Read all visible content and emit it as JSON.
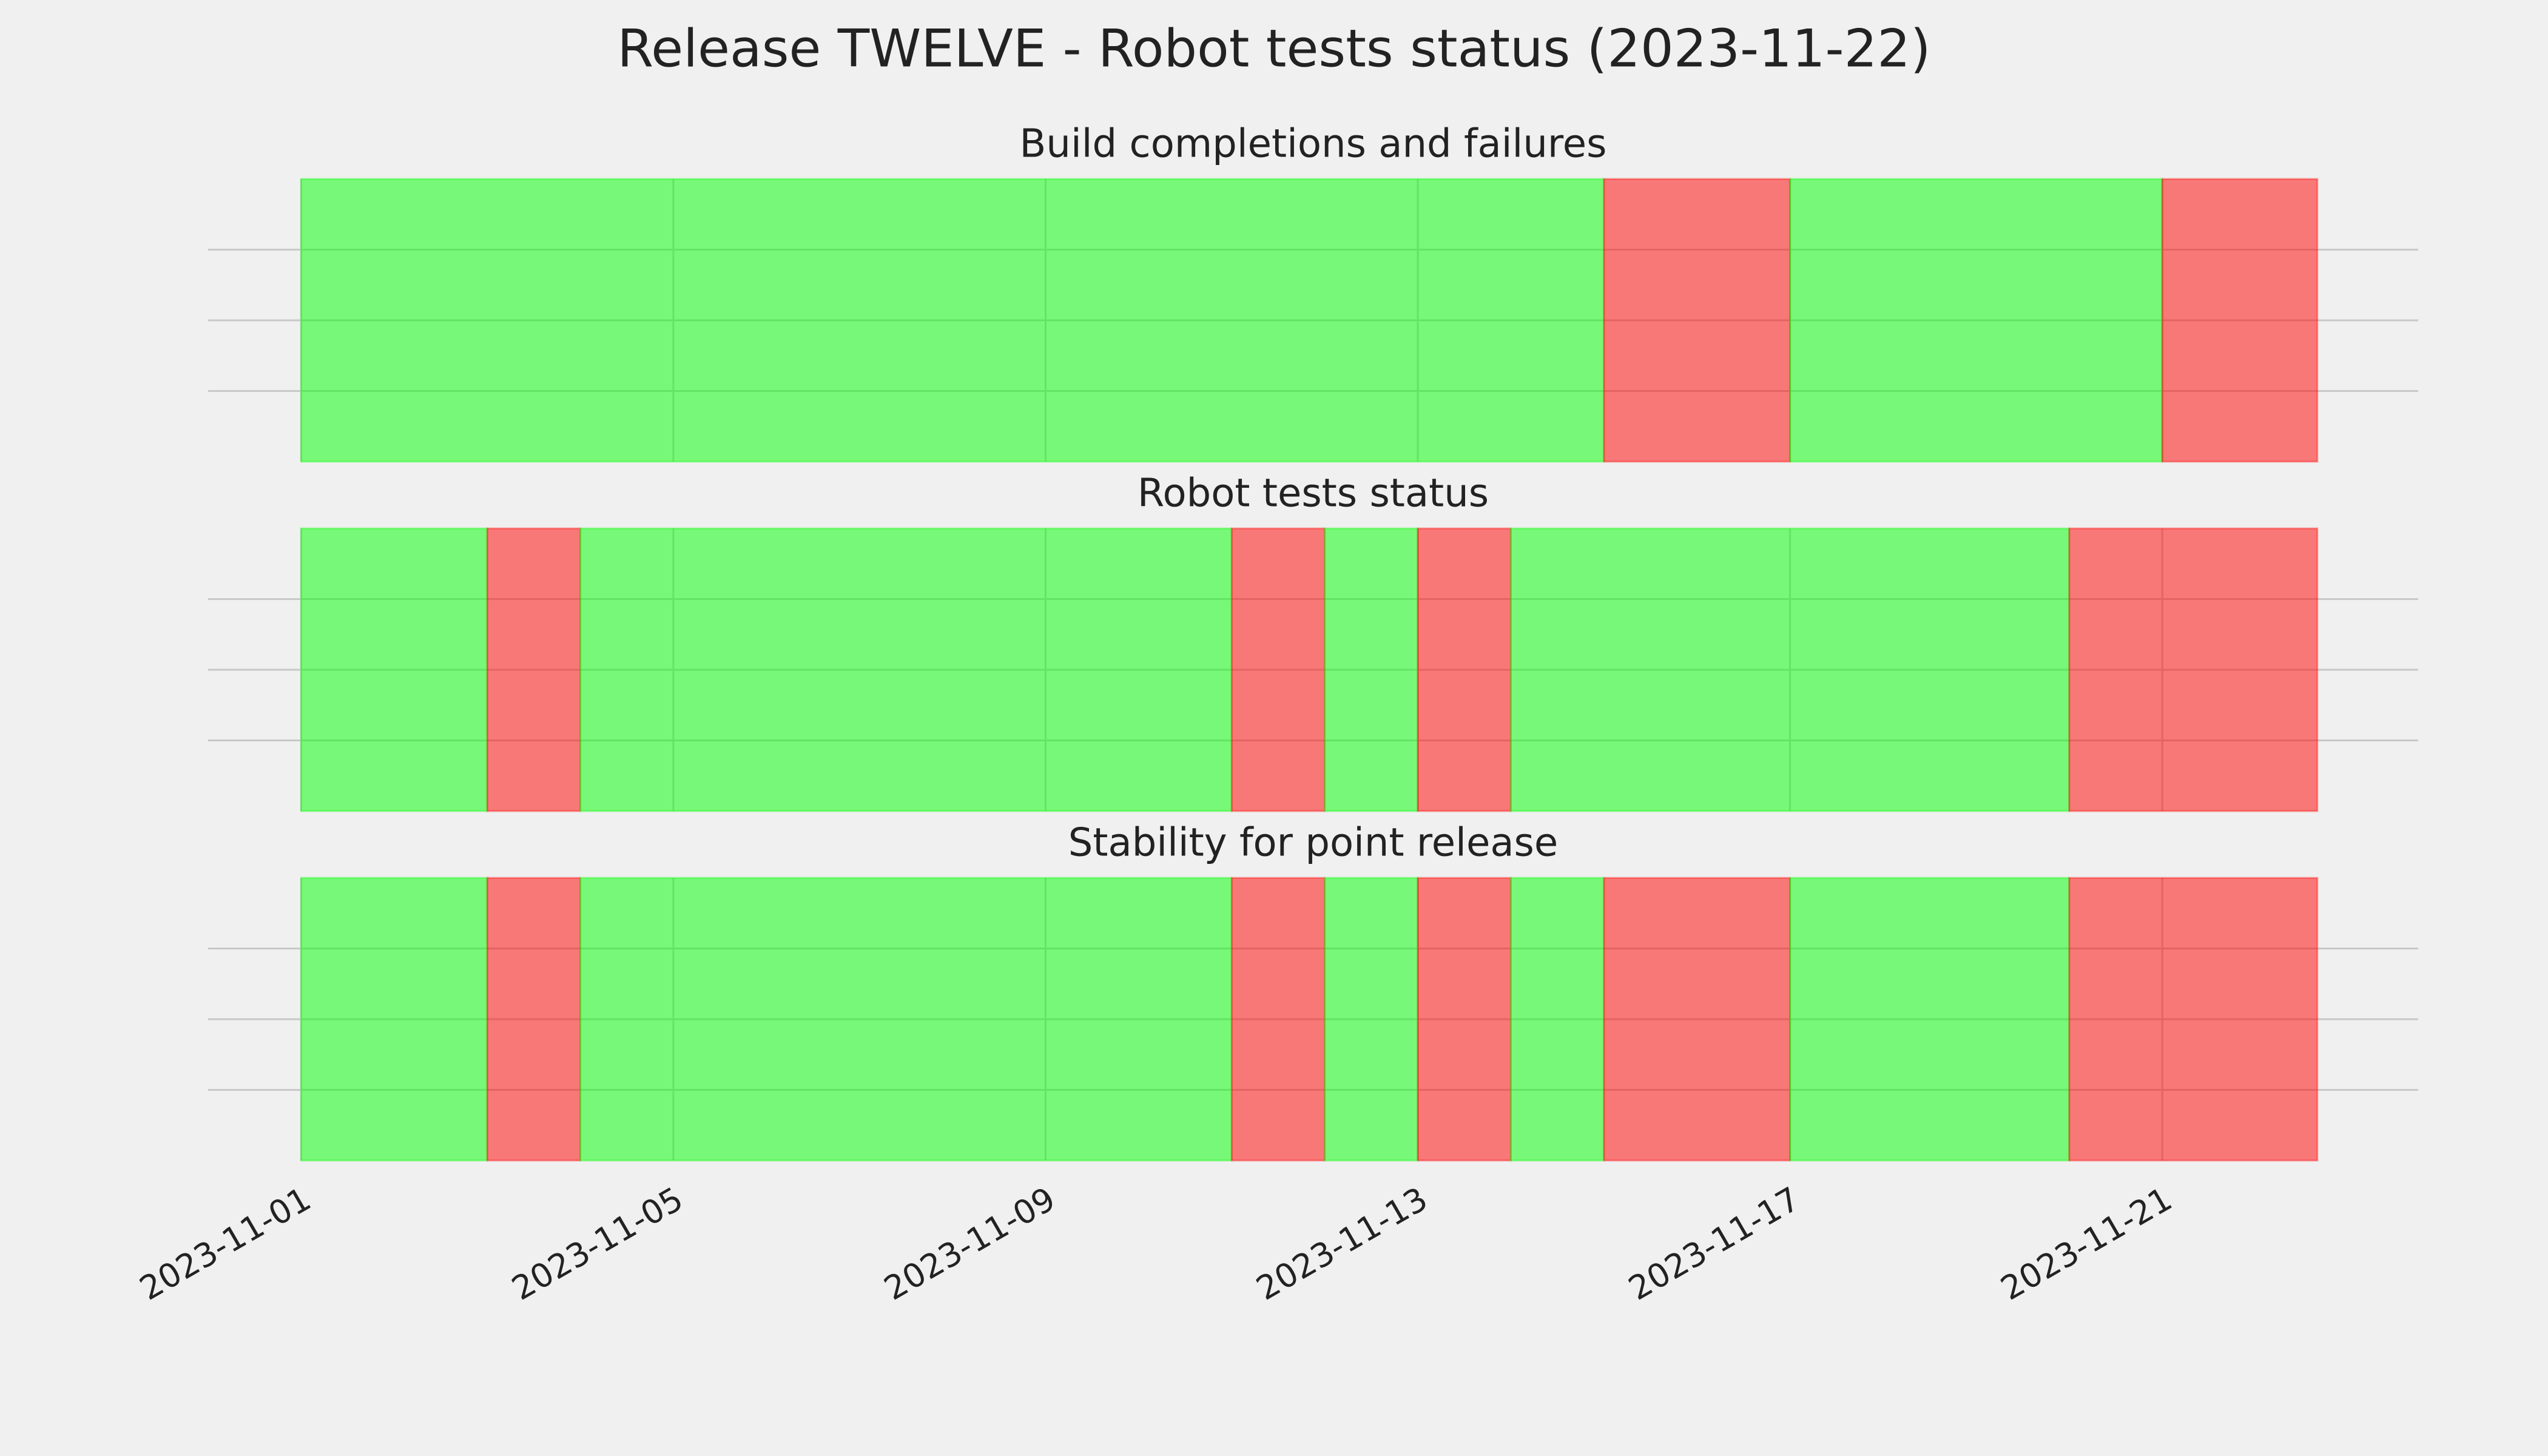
{
  "title": "Release TWELVE - Robot tests status (2023-11-22)",
  "chart_data": [
    {
      "type": "span",
      "title": "Build completions and failures",
      "xlim": [
        "2023-10-31",
        "2023-11-23T18:00"
      ],
      "xticks": [
        "2023-11-01",
        "2023-11-05",
        "2023-11-09",
        "2023-11-13",
        "2023-11-17",
        "2023-11-21"
      ],
      "ylim": [
        0,
        1
      ],
      "yticks": [
        0.25,
        0.5,
        0.75
      ],
      "grid": true,
      "spans": [
        {
          "start": "2023-11-01",
          "end": "2023-11-15",
          "color": "#00ff00"
        },
        {
          "start": "2023-11-15",
          "end": "2023-11-17",
          "color": "#ff0000"
        },
        {
          "start": "2023-11-17",
          "end": "2023-11-21",
          "color": "#00ff00"
        },
        {
          "start": "2023-11-21",
          "end": "2023-11-22T16:00",
          "color": "#ff0000"
        }
      ]
    },
    {
      "type": "span",
      "title": "Robot tests status",
      "xlim": [
        "2023-10-31",
        "2023-11-23T18:00"
      ],
      "xticks": [
        "2023-11-01",
        "2023-11-05",
        "2023-11-09",
        "2023-11-13",
        "2023-11-17",
        "2023-11-21"
      ],
      "ylim": [
        0,
        1
      ],
      "yticks": [
        0.25,
        0.5,
        0.75
      ],
      "grid": true,
      "spans": [
        {
          "start": "2023-11-01",
          "end": "2023-11-03",
          "color": "#00ff00"
        },
        {
          "start": "2023-11-03",
          "end": "2023-11-04",
          "color": "#ff0000"
        },
        {
          "start": "2023-11-04",
          "end": "2023-11-11",
          "color": "#00ff00"
        },
        {
          "start": "2023-11-11",
          "end": "2023-11-12",
          "color": "#ff0000"
        },
        {
          "start": "2023-11-12",
          "end": "2023-11-13",
          "color": "#00ff00"
        },
        {
          "start": "2023-11-13",
          "end": "2023-11-14",
          "color": "#ff0000"
        },
        {
          "start": "2023-11-14",
          "end": "2023-11-20",
          "color": "#00ff00"
        },
        {
          "start": "2023-11-20",
          "end": "2023-11-22T16:00",
          "color": "#ff0000"
        }
      ]
    },
    {
      "type": "span",
      "title": "Stability for point release",
      "xlim": [
        "2023-10-31",
        "2023-11-23T18:00"
      ],
      "xticks": [
        "2023-11-01",
        "2023-11-05",
        "2023-11-09",
        "2023-11-13",
        "2023-11-17",
        "2023-11-21"
      ],
      "ylim": [
        0,
        1
      ],
      "yticks": [
        0.25,
        0.5,
        0.75
      ],
      "grid": true,
      "spans": [
        {
          "start": "2023-11-01",
          "end": "2023-11-03",
          "color": "#00ff00"
        },
        {
          "start": "2023-11-03",
          "end": "2023-11-04",
          "color": "#ff0000"
        },
        {
          "start": "2023-11-04",
          "end": "2023-11-11",
          "color": "#00ff00"
        },
        {
          "start": "2023-11-11",
          "end": "2023-11-12",
          "color": "#ff0000"
        },
        {
          "start": "2023-11-12",
          "end": "2023-11-13",
          "color": "#00ff00"
        },
        {
          "start": "2023-11-13",
          "end": "2023-11-14",
          "color": "#ff0000"
        },
        {
          "start": "2023-11-14",
          "end": "2023-11-15",
          "color": "#00ff00"
        },
        {
          "start": "2023-11-15",
          "end": "2023-11-17",
          "color": "#ff0000"
        },
        {
          "start": "2023-11-17",
          "end": "2023-11-20",
          "color": "#00ff00"
        },
        {
          "start": "2023-11-20",
          "end": "2023-11-22T16:00",
          "color": "#ff0000"
        }
      ]
    }
  ]
}
